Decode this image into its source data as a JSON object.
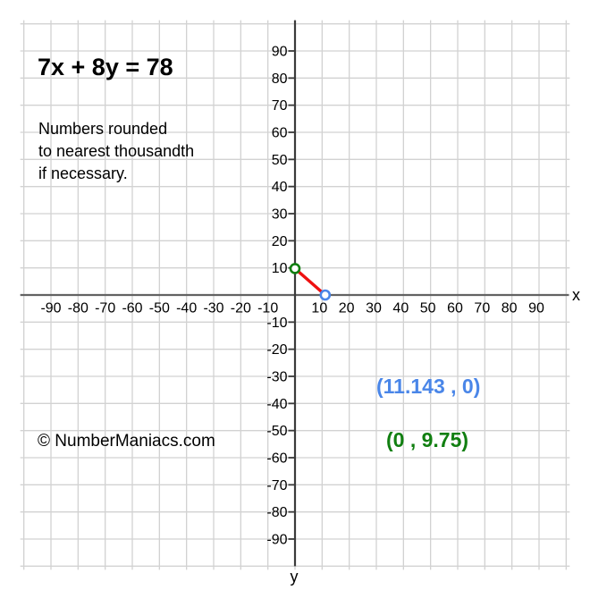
{
  "header": {
    "equation": "7x + 8y = 78",
    "note_lines": [
      "Numbers rounded",
      "to nearest thousandth",
      "if necessary."
    ],
    "watermark": "© NumberManiacs.com"
  },
  "chart_data": {
    "type": "line",
    "title": "7x + 8y = 78",
    "xlabel": "x",
    "ylabel": "y",
    "grid": true,
    "grid_range": [
      -100,
      100
    ],
    "grid_step": 10,
    "xlim": [
      -100,
      100
    ],
    "ylim": [
      -100,
      100
    ],
    "x_tick_labels": [
      -90,
      -80,
      -70,
      -60,
      -50,
      -40,
      -30,
      -20,
      -10,
      10,
      20,
      30,
      40,
      50,
      60,
      70,
      80,
      90
    ],
    "y_tick_labels": [
      90,
      80,
      70,
      60,
      50,
      40,
      30,
      20,
      10,
      -10,
      -20,
      -30,
      -40,
      -50,
      -60,
      -70,
      -80,
      -90
    ],
    "series": [
      {
        "name": "7x + 8y = 78",
        "color": "#ee1111",
        "points": [
          [
            0,
            9.75
          ],
          [
            11.143,
            0
          ]
        ]
      }
    ],
    "points": [
      {
        "name": "x-intercept",
        "coords": [
          11.143,
          0
        ],
        "label": "(11.143 , 0)",
        "color": "#4a86e8"
      },
      {
        "name": "y-intercept",
        "coords": [
          0,
          9.75
        ],
        "label": "(0 , 9.75)",
        "color": "#117f11"
      }
    ]
  },
  "colors": {
    "grid": "#d2d2d2",
    "x_axis": "#636363",
    "y_axis": "#3b3b3b",
    "tick": "#3a3a3a",
    "red_line": "#ee1111",
    "blue": "#4a86e8",
    "green": "#117f11"
  }
}
